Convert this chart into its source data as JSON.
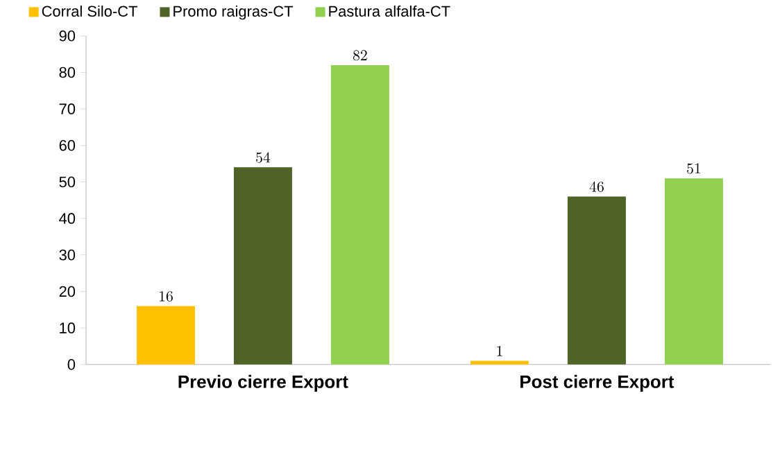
{
  "chart_data": {
    "type": "bar",
    "categories": [
      "Previo cierre Export",
      "Post cierre Export"
    ],
    "series": [
      {
        "name": "Corral Silo-CT",
        "color": "#ffc000",
        "values": [
          16,
          1
        ]
      },
      {
        "name": "Promo raigras-CT",
        "color": "#4f6228",
        "values": [
          54,
          46
        ]
      },
      {
        "name": "Pastura alfalfa-CT",
        "color": "#92d050",
        "values": [
          82,
          51
        ]
      }
    ],
    "ylim": [
      0,
      90
    ],
    "yticks": [
      0,
      10,
      20,
      30,
      40,
      50,
      60,
      70,
      80,
      90
    ],
    "data_labels": true,
    "legend": "top",
    "grid": false
  }
}
